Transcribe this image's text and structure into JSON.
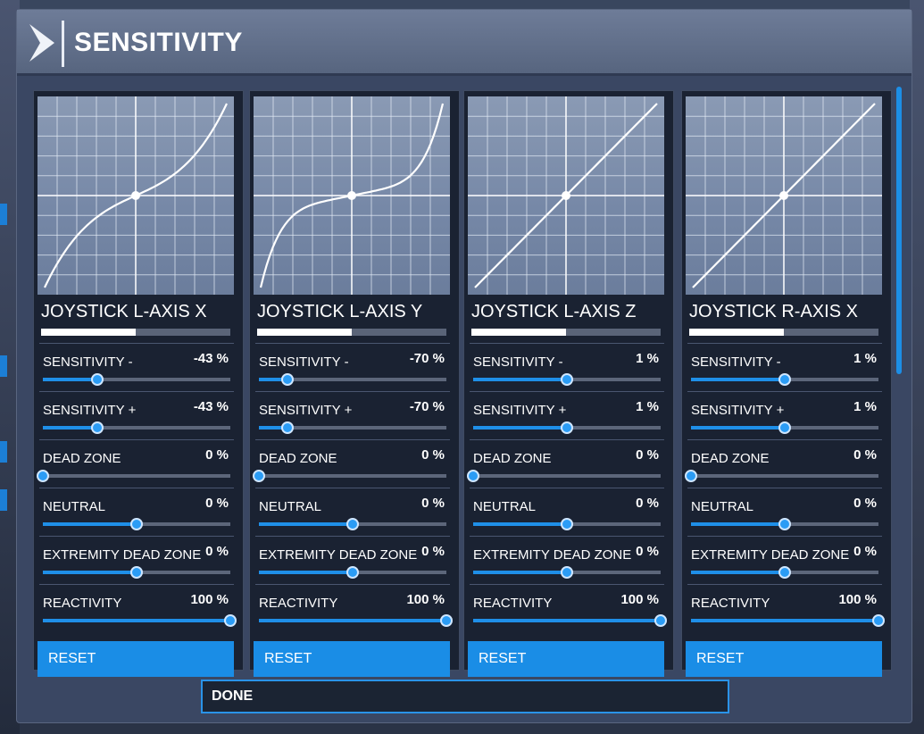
{
  "header": {
    "title": "SENSITIVITY"
  },
  "panels": [
    {
      "axis_name": "JOYSTICK L-AXIS X",
      "axis_fill": 0.5,
      "curve": "s-mild",
      "settings": [
        {
          "label": "SENSITIVITY -",
          "value": "-43 %",
          "level": 0.29
        },
        {
          "label": "SENSITIVITY +",
          "value": "-43 %",
          "level": 0.29
        },
        {
          "label": "DEAD ZONE",
          "value": "0 %",
          "level": 0.0
        },
        {
          "label": "NEUTRAL",
          "value": "0 %",
          "level": 0.5
        },
        {
          "label": "EXTREMITY DEAD ZONE",
          "value": "0 %",
          "level": 0.5
        },
        {
          "label": "REACTIVITY",
          "value": "100 %",
          "level": 1.0
        }
      ],
      "reset_label": "RESET"
    },
    {
      "axis_name": "JOYSTICK L-AXIS Y",
      "axis_fill": 0.5,
      "curve": "s-strong",
      "settings": [
        {
          "label": "SENSITIVITY -",
          "value": "-70 %",
          "level": 0.15
        },
        {
          "label": "SENSITIVITY +",
          "value": "-70 %",
          "level": 0.15
        },
        {
          "label": "DEAD ZONE",
          "value": "0 %",
          "level": 0.0
        },
        {
          "label": "NEUTRAL",
          "value": "0 %",
          "level": 0.5
        },
        {
          "label": "EXTREMITY DEAD ZONE",
          "value": "0 %",
          "level": 0.5
        },
        {
          "label": "REACTIVITY",
          "value": "100 %",
          "level": 1.0
        }
      ],
      "reset_label": "RESET"
    },
    {
      "axis_name": "JOYSTICK L-AXIS Z",
      "axis_fill": 0.5,
      "curve": "linear",
      "settings": [
        {
          "label": "SENSITIVITY -",
          "value": "1 %",
          "level": 0.5
        },
        {
          "label": "SENSITIVITY +",
          "value": "1 %",
          "level": 0.5
        },
        {
          "label": "DEAD ZONE",
          "value": "0 %",
          "level": 0.0
        },
        {
          "label": "NEUTRAL",
          "value": "0 %",
          "level": 0.5
        },
        {
          "label": "EXTREMITY DEAD ZONE",
          "value": "0 %",
          "level": 0.5
        },
        {
          "label": "REACTIVITY",
          "value": "100 %",
          "level": 1.0
        }
      ],
      "reset_label": "RESET"
    },
    {
      "axis_name": "JOYSTICK R-AXIS X",
      "axis_fill": 0.5,
      "curve": "linear",
      "settings": [
        {
          "label": "SENSITIVITY -",
          "value": "1 %",
          "level": 0.5
        },
        {
          "label": "SENSITIVITY +",
          "value": "1 %",
          "level": 0.5
        },
        {
          "label": "DEAD ZONE",
          "value": "0 %",
          "level": 0.0
        },
        {
          "label": "NEUTRAL",
          "value": "0 %",
          "level": 0.5
        },
        {
          "label": "EXTREMITY DEAD ZONE",
          "value": "0 %",
          "level": 0.5
        },
        {
          "label": "REACTIVITY",
          "value": "100 %",
          "level": 1.0
        }
      ],
      "reset_label": "RESET"
    }
  ],
  "footer": {
    "done_label": "DONE"
  },
  "colors": {
    "accent": "#1f8fe8",
    "panel_bg": "#1a2232",
    "header_bg": "#62708c"
  },
  "icons": {
    "logo": "chevron-right-icon"
  }
}
